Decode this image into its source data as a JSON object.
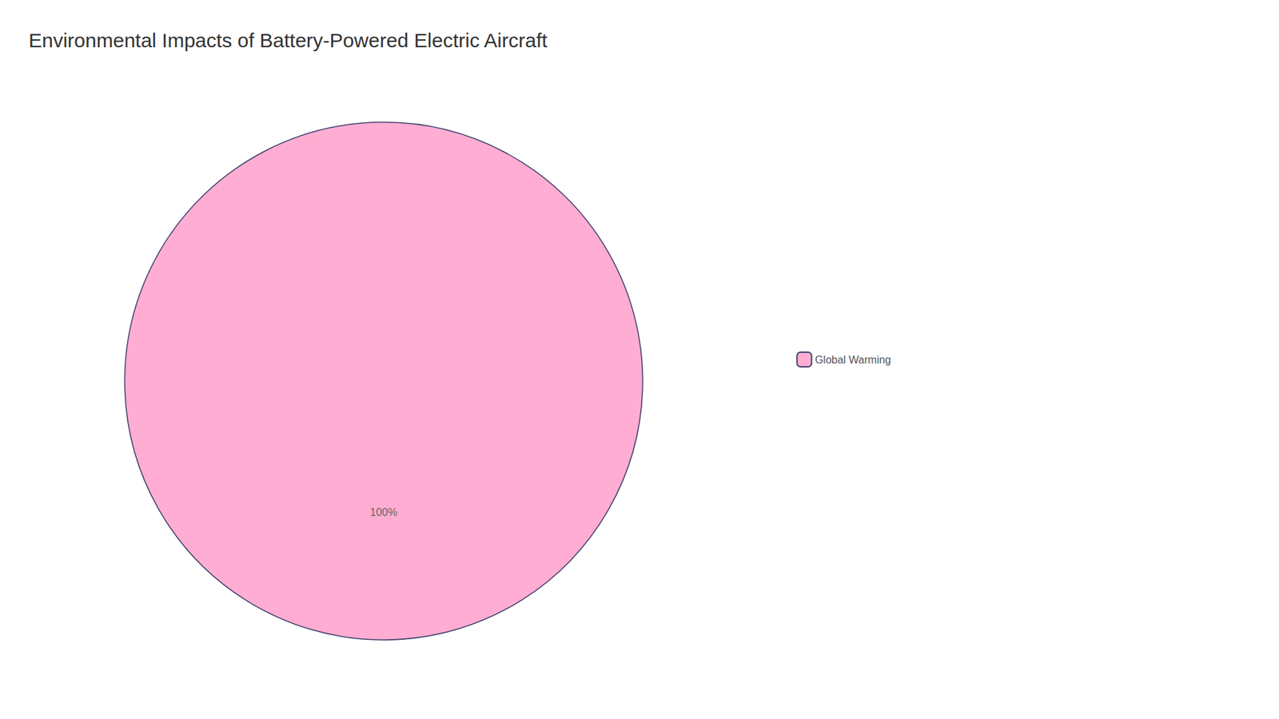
{
  "chart_data": {
    "type": "pie",
    "title": "Environmental Impacts of Battery-Powered Electric Aircraft",
    "categories": [
      "Global Warming"
    ],
    "values": [
      100
    ],
    "value_labels": [
      "100%"
    ],
    "data_labels": true,
    "colors": [
      "#ffadd2"
    ],
    "legend": "right"
  }
}
